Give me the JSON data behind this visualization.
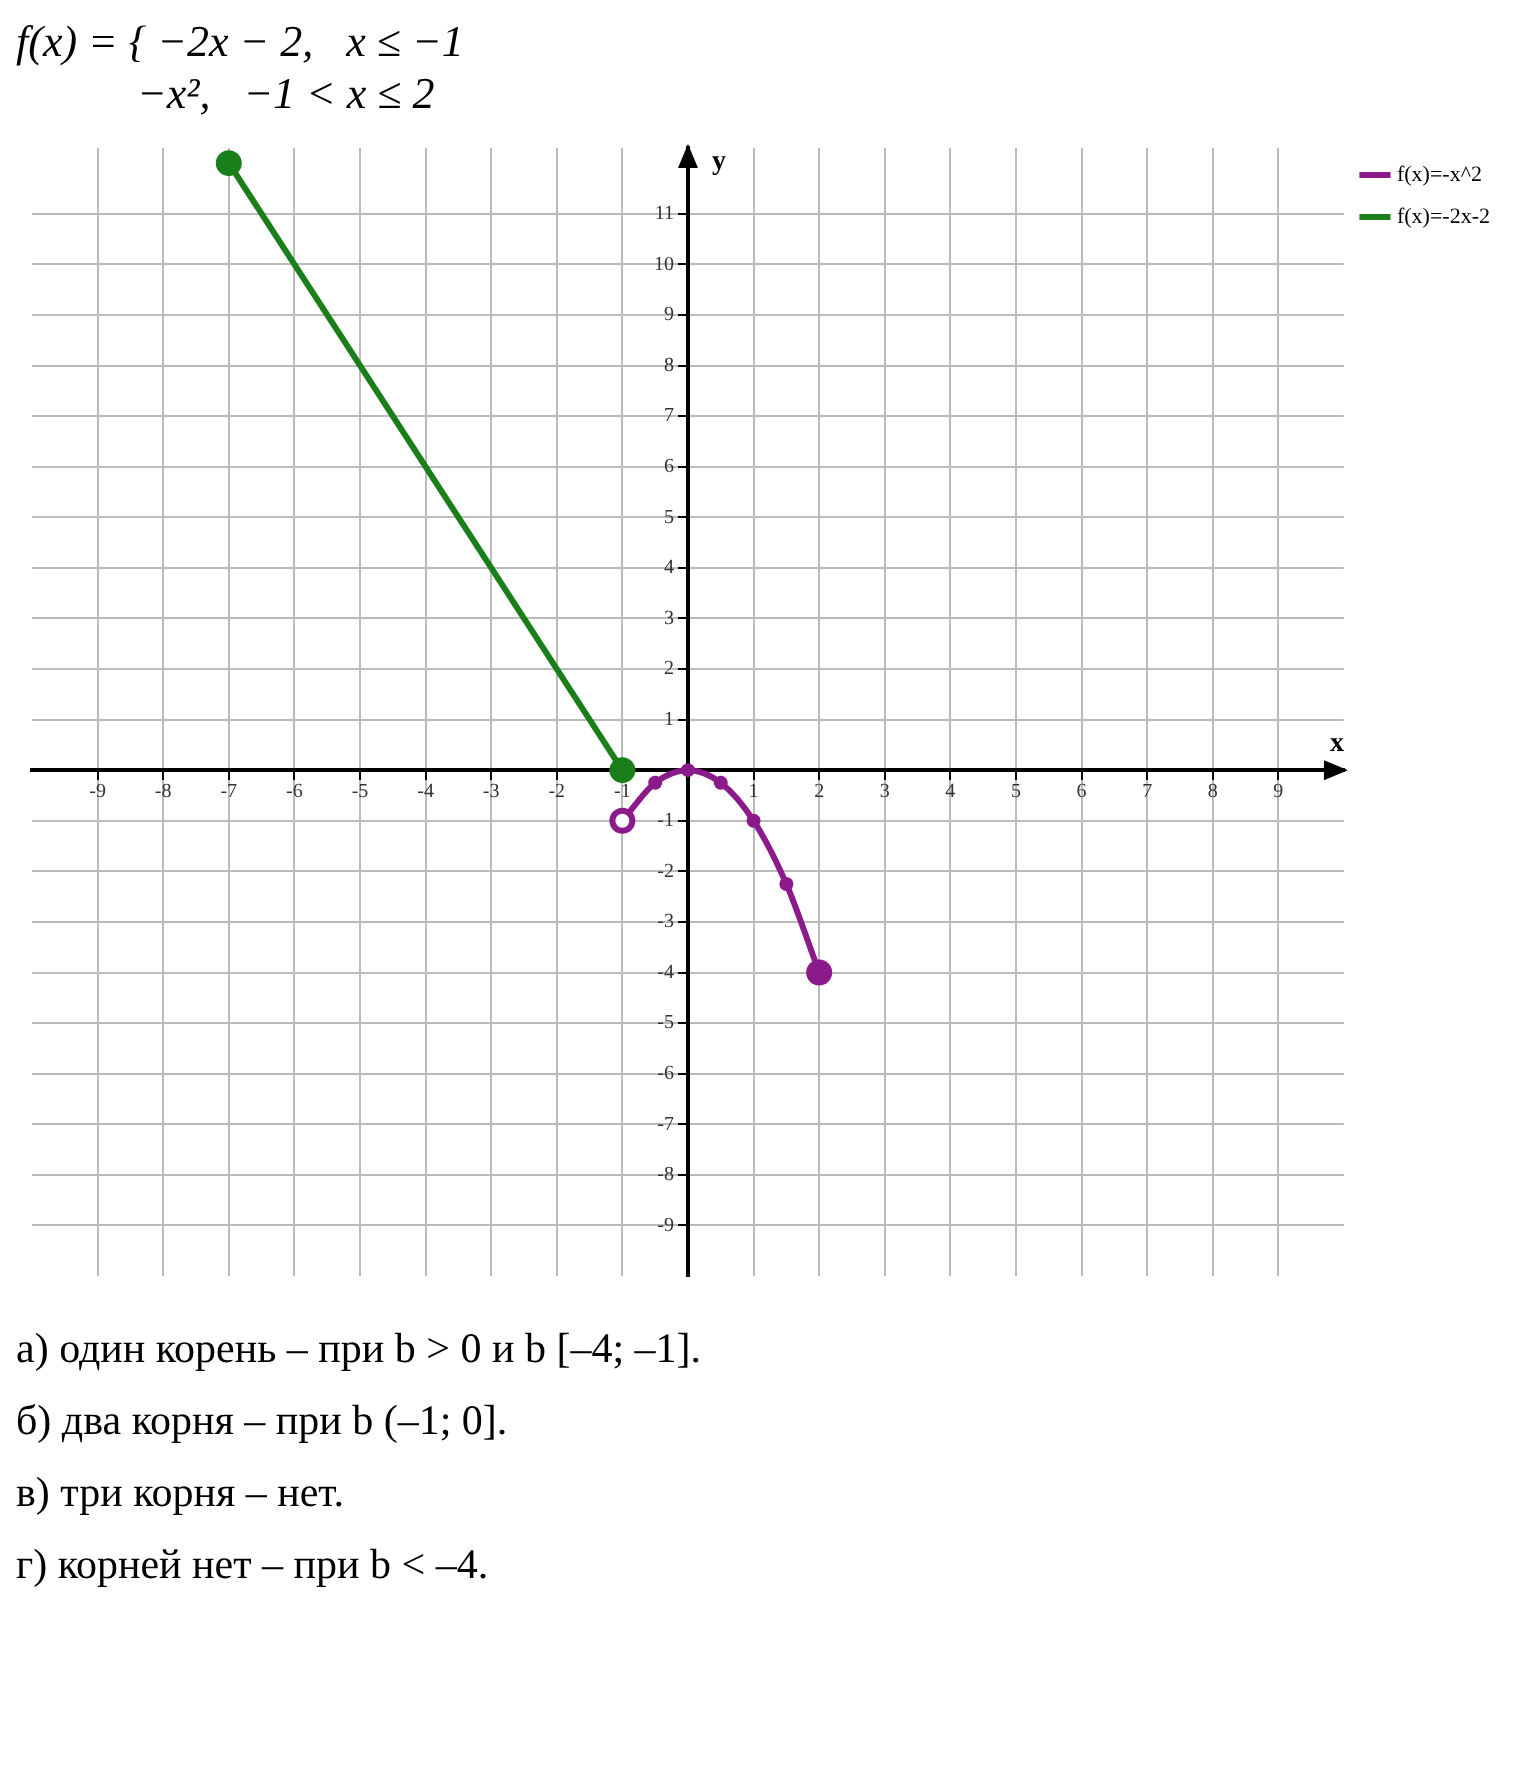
{
  "chart_data": {
    "type": "line",
    "title": "f(x) = { −2x − 2,   x ≤ −1\n           −x²,   −1 < x ≤ 2",
    "xlabel": "x",
    "ylabel": "y",
    "series": [
      {
        "name": "f(x)=-x^2",
        "color": "#8b1a8b",
        "x": [
          -1,
          -0.5,
          0,
          0.5,
          1,
          1.5,
          2
        ],
        "values": [
          -1,
          -0.25,
          0,
          -0.25,
          -1,
          -2.25,
          -4
        ]
      },
      {
        "name": "f(x)=-2x-2",
        "color": "#1a7f1a",
        "x": [
          -7,
          -1
        ],
        "values": [
          12,
          0
        ]
      }
    ],
    "xlim": [
      -10,
      10
    ],
    "ylim": [
      -10,
      12.3
    ],
    "xticks": [
      -9,
      -8,
      -7,
      -6,
      -5,
      -4,
      -3,
      -2,
      -1,
      1,
      2,
      3,
      4,
      5,
      6,
      7,
      8,
      9
    ],
    "yticks": [
      -9,
      -8,
      -7,
      -6,
      -5,
      -4,
      -3,
      -2,
      -1,
      1,
      2,
      3,
      4,
      5,
      6,
      7,
      8,
      9,
      10,
      11
    ],
    "grid": true,
    "legend": "top right",
    "marker": "circle",
    "line_style": "solid",
    "annotations": [
      "а) один корень – при b > 0 и b [–4; –1].",
      "б) два корня – при b (–1; 0].",
      "в) три корня – нет.",
      "г) корней нет – при b < –4."
    ]
  }
}
